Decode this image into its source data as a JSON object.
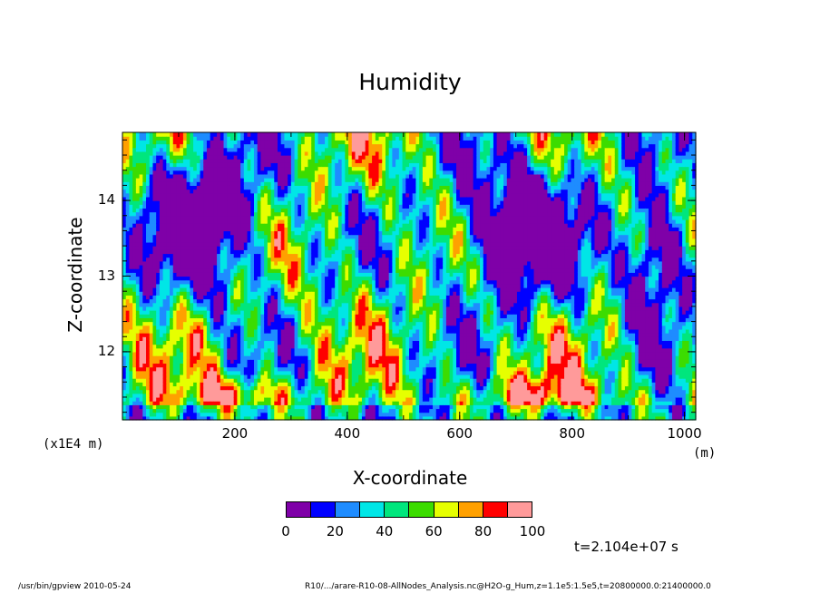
{
  "chart_data": {
    "type": "heatmap",
    "title": "Humidity",
    "xlabel": "X-coordinate",
    "ylabel": "Z-coordinate",
    "x_unit": "(m)",
    "y_scale_label": "(x1E4 m)",
    "xlim": [
      0,
      1020
    ],
    "ylim": [
      11.1,
      14.9
    ],
    "x_ticks": [
      200,
      400,
      600,
      800,
      1000
    ],
    "y_ticks": [
      12,
      13,
      14
    ],
    "colorbar": {
      "levels": [
        0,
        10,
        20,
        30,
        40,
        50,
        60,
        70,
        80,
        90,
        100
      ],
      "tick_labels": [
        "0",
        "20",
        "40",
        "60",
        "80",
        "100"
      ],
      "colors": [
        "#7f00a8",
        "#0000ff",
        "#1e8cff",
        "#00e6e6",
        "#00e67d",
        "#3cdc00",
        "#e6ff00",
        "#ffa000",
        "#ff0000",
        "#ff9a9a"
      ]
    },
    "time_label": "t=2.104e+07 s"
  },
  "footer": {
    "left": "/usr/bin/gpview  2010-05-24",
    "right": "R10/.../arare-R10-08-AllNodes_Analysis.nc@H2O-g_Hum,z=1.1e5:1.5e5,t=20800000.0:21400000.0"
  }
}
